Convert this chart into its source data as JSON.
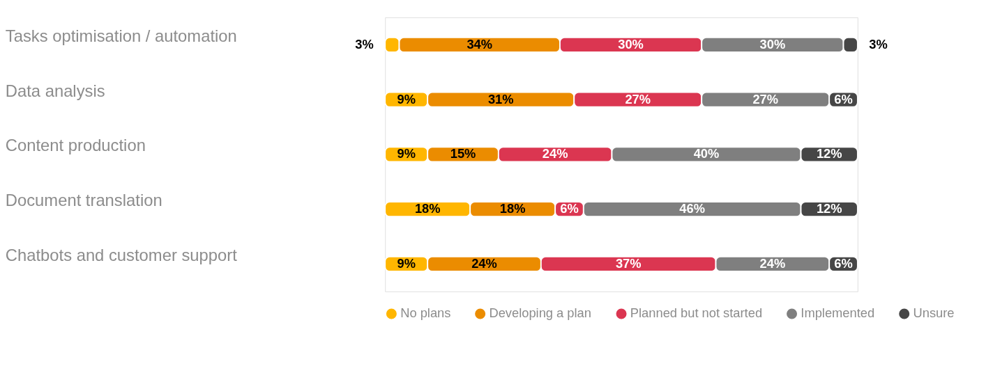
{
  "chart_data": {
    "type": "bar",
    "orientation": "horizontal",
    "stacked": true,
    "legend": "bottom",
    "grid": false,
    "categories": [
      "Tasks optimisation / automation",
      "Data analysis",
      "Content production",
      "Document translation",
      "Chatbots and customer support"
    ],
    "series": [
      {
        "name": "No plans",
        "color": "#ffb600",
        "values": [
          3,
          9,
          9,
          18,
          9
        ],
        "value_labels": [
          "3%",
          "9%",
          "9%",
          "18%",
          "9%"
        ]
      },
      {
        "name": "Developing a plan",
        "color": "#eb8c00",
        "values": [
          34,
          31,
          15,
          18,
          24
        ],
        "value_labels": [
          "34%",
          "31%",
          "15%",
          "18%",
          "24%"
        ]
      },
      {
        "name": "Planned but not started",
        "color": "#db3651",
        "values": [
          30,
          27,
          24,
          6,
          37
        ],
        "value_labels": [
          "30%",
          "27%",
          "24%",
          "6%",
          "37%"
        ]
      },
      {
        "name": "Implemented",
        "color": "#7f7f7f",
        "values": [
          30,
          27,
          40,
          46,
          24
        ],
        "value_labels": [
          "30%",
          "27%",
          "40%",
          "46%",
          "24%"
        ]
      },
      {
        "name": "Unsure",
        "color": "#464646",
        "values": [
          3,
          6,
          12,
          12,
          6
        ],
        "value_labels": [
          "3%",
          "6%",
          "12%",
          "12%",
          "6%"
        ]
      }
    ]
  }
}
